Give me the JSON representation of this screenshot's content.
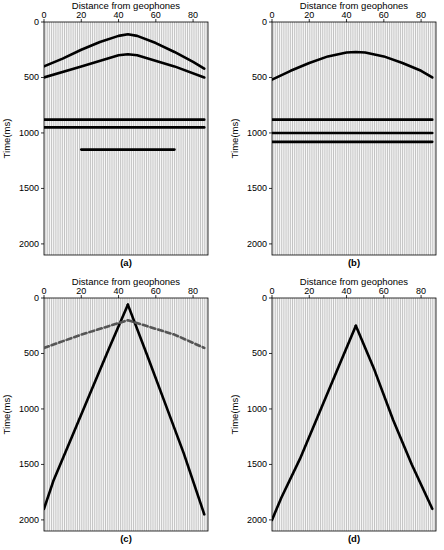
{
  "chart_data": [
    {
      "type": "line",
      "caption": "(a)",
      "xlabel": "Distance from geophones",
      "ylabel": "Time(ms)",
      "xlim": [
        0,
        88
      ],
      "ylim": [
        0,
        2100
      ],
      "xticks": [
        0,
        20,
        40,
        60,
        80
      ],
      "yticks": [
        0,
        500,
        1000,
        1500,
        2000
      ],
      "grid": false,
      "series": [
        {
          "color": "#000000",
          "line_style": "solid",
          "x": [
            0,
            10,
            20,
            30,
            40,
            45,
            50,
            60,
            70,
            80,
            86
          ],
          "values": [
            400,
            330,
            250,
            180,
            125,
            110,
            125,
            190,
            270,
            360,
            420
          ]
        },
        {
          "color": "#000000",
          "line_style": "solid",
          "x": [
            0,
            20,
            40,
            45,
            50,
            70,
            86
          ],
          "values": [
            500,
            400,
            300,
            290,
            300,
            400,
            500
          ]
        },
        {
          "color": "#000000",
          "line_style": "solid",
          "x": [
            0,
            86
          ],
          "values": [
            880,
            880
          ]
        },
        {
          "color": "#000000",
          "line_style": "solid",
          "x": [
            0,
            86
          ],
          "values": [
            950,
            950
          ]
        },
        {
          "color": "#000000",
          "line_style": "solid",
          "x": [
            20,
            70
          ],
          "values": [
            1150,
            1150
          ]
        }
      ]
    },
    {
      "type": "line",
      "caption": "(b)",
      "xlabel": "Distance from geophones",
      "ylabel": "Time(ms)",
      "xlim": [
        0,
        88
      ],
      "ylim": [
        0,
        2100
      ],
      "xticks": [
        0,
        20,
        40,
        60,
        80
      ],
      "yticks": [
        0,
        500,
        1000,
        1500,
        2000
      ],
      "grid": false,
      "series": [
        {
          "color": "#000000",
          "line_style": "solid",
          "x": [
            0,
            10,
            20,
            30,
            40,
            45,
            50,
            60,
            70,
            80,
            86
          ],
          "values": [
            520,
            440,
            370,
            310,
            275,
            270,
            275,
            310,
            370,
            440,
            500
          ]
        },
        {
          "color": "#000000",
          "line_style": "solid",
          "x": [
            0,
            86
          ],
          "values": [
            880,
            880
          ]
        },
        {
          "color": "#000000",
          "line_style": "solid",
          "x": [
            0,
            86
          ],
          "values": [
            1000,
            1000
          ]
        },
        {
          "color": "#000000",
          "line_style": "solid",
          "x": [
            0,
            86
          ],
          "values": [
            1080,
            1080
          ]
        }
      ]
    },
    {
      "type": "line",
      "caption": "(c)",
      "xlabel": "Distance from geophones",
      "ylabel": "Time(ms)",
      "xlim": [
        0,
        88
      ],
      "ylim": [
        0,
        2100
      ],
      "xticks": [
        0,
        20,
        40,
        60,
        80
      ],
      "yticks": [
        0,
        500,
        1000,
        1500,
        2000
      ],
      "grid": false,
      "series": [
        {
          "color": "#000000",
          "line_style": "solid",
          "x": [
            45,
            35,
            25,
            15,
            5,
            0
          ],
          "values": [
            60,
            450,
            850,
            1250,
            1650,
            1900
          ]
        },
        {
          "color": "#000000",
          "line_style": "solid",
          "x": [
            45,
            55,
            65,
            75,
            86
          ],
          "values": [
            60,
            500,
            950,
            1400,
            1950
          ]
        },
        {
          "color": "#555555",
          "line_style": "dashed",
          "x": [
            0,
            20,
            45,
            70,
            86
          ],
          "values": [
            450,
            330,
            200,
            330,
            450
          ]
        }
      ]
    },
    {
      "type": "line",
      "caption": "(d)",
      "xlabel": "Distance from geophones",
      "ylabel": "Time(ms)",
      "xlim": [
        0,
        88
      ],
      "ylim": [
        0,
        2100
      ],
      "xticks": [
        0,
        20,
        40,
        60,
        80
      ],
      "yticks": [
        0,
        500,
        1000,
        1500,
        2000
      ],
      "grid": false,
      "series": [
        {
          "color": "#000000",
          "line_style": "solid",
          "x": [
            45,
            35,
            25,
            15,
            5,
            0
          ],
          "values": [
            250,
            650,
            1050,
            1450,
            1800,
            2000
          ]
        },
        {
          "color": "#000000",
          "line_style": "solid",
          "x": [
            45,
            55,
            65,
            75,
            86
          ],
          "values": [
            250,
            650,
            1100,
            1500,
            1900
          ]
        }
      ]
    }
  ]
}
